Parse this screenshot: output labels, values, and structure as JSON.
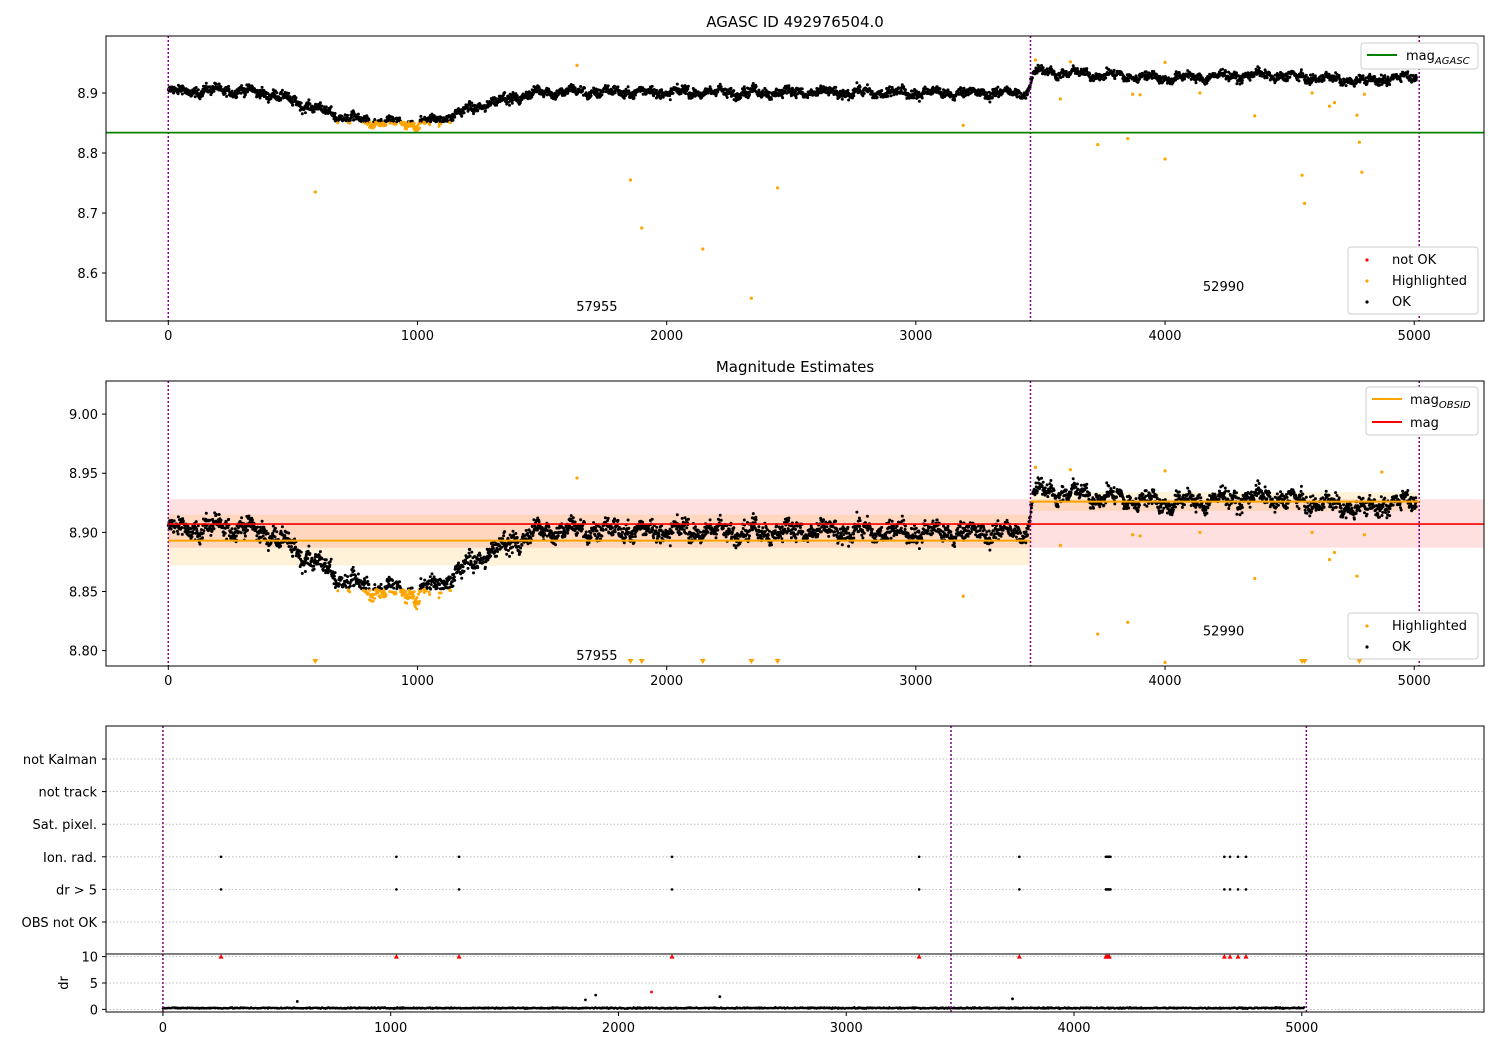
{
  "chart_data": [
    {
      "type": "scatter",
      "title": "AGASC ID 492976504.0",
      "xlabel": "",
      "ylabel": "",
      "xlim": [
        -250,
        5280
      ],
      "ylim": [
        8.52,
        8.995
      ],
      "xticks": [
        0,
        1000,
        2000,
        3000,
        4000,
        5000
      ],
      "yticks": [
        8.6,
        8.7,
        8.8,
        8.9
      ],
      "observation_boundaries": [
        0,
        3460,
        5020
      ],
      "observation_labels": [
        {
          "text": "57955",
          "x": 1720,
          "y": 8.537
        },
        {
          "text": "52990",
          "x": 4235,
          "y": 8.57
        }
      ],
      "reference_lines": [
        {
          "name": "mag",
          "subscript": "AGASC",
          "y": 8.834,
          "x0": -250,
          "x1": 5280,
          "color": "#008000"
        }
      ],
      "legend_upper": {
        "placement": "upper-right"
      },
      "legend_lower": {
        "placement": "lower-right",
        "entries": [
          {
            "name": "not OK",
            "color": "#ff0000"
          },
          {
            "name": "Highlighted",
            "color": "#ffa500"
          },
          {
            "name": "OK",
            "color": "#000000"
          }
        ]
      },
      "ok_profile": [
        {
          "x": 0,
          "y": 8.902
        },
        {
          "x": 250,
          "y": 8.905
        },
        {
          "x": 400,
          "y": 8.9
        },
        {
          "x": 550,
          "y": 8.88
        },
        {
          "x": 700,
          "y": 8.86
        },
        {
          "x": 800,
          "y": 8.852
        },
        {
          "x": 1000,
          "y": 8.848
        },
        {
          "x": 1100,
          "y": 8.858
        },
        {
          "x": 1300,
          "y": 8.885
        },
        {
          "x": 1500,
          "y": 8.902
        },
        {
          "x": 3450,
          "y": 8.9
        },
        {
          "x": 3470,
          "y": 8.936
        },
        {
          "x": 4000,
          "y": 8.925
        },
        {
          "x": 4400,
          "y": 8.93
        },
        {
          "x": 4800,
          "y": 8.92
        },
        {
          "x": 5000,
          "y": 8.928
        }
      ],
      "highlighted_points": [
        {
          "x": 590,
          "y": 8.735
        },
        {
          "x": 1640,
          "y": 8.946
        },
        {
          "x": 1855,
          "y": 8.755
        },
        {
          "x": 1900,
          "y": 8.675
        },
        {
          "x": 2145,
          "y": 8.64
        },
        {
          "x": 2340,
          "y": 8.558
        },
        {
          "x": 2445,
          "y": 8.742
        },
        {
          "x": 3190,
          "y": 8.846
        },
        {
          "x": 3580,
          "y": 8.89
        },
        {
          "x": 3730,
          "y": 8.814
        },
        {
          "x": 3850,
          "y": 8.824
        },
        {
          "x": 3870,
          "y": 8.898
        },
        {
          "x": 3900,
          "y": 8.897
        },
        {
          "x": 4000,
          "y": 8.79
        },
        {
          "x": 4000,
          "y": 8.951
        },
        {
          "x": 4140,
          "y": 8.9
        },
        {
          "x": 4360,
          "y": 8.862
        },
        {
          "x": 4550,
          "y": 8.763
        },
        {
          "x": 4560,
          "y": 8.716
        },
        {
          "x": 4590,
          "y": 8.9
        },
        {
          "x": 4660,
          "y": 8.878
        },
        {
          "x": 4680,
          "y": 8.884
        },
        {
          "x": 4770,
          "y": 8.863
        },
        {
          "x": 4780,
          "y": 8.818
        },
        {
          "x": 4790,
          "y": 8.768
        },
        {
          "x": 4800,
          "y": 8.898
        },
        {
          "x": 4870,
          "y": 8.949
        },
        {
          "x": 3480,
          "y": 8.955
        },
        {
          "x": 3620,
          "y": 8.952
        }
      ]
    },
    {
      "type": "scatter",
      "title": "Magnitude Estimates",
      "xlabel": "",
      "ylabel": "",
      "xlim": [
        -250,
        5280
      ],
      "ylim": [
        8.787,
        9.028
      ],
      "xticks": [
        0,
        1000,
        2000,
        3000,
        4000,
        5000
      ],
      "yticks": [
        8.8,
        8.85,
        8.9,
        8.95,
        9.0
      ],
      "ytick_labels": [
        "8.80",
        "8.85",
        "8.90",
        "8.95",
        "9.00"
      ],
      "observation_boundaries": [
        0,
        3460,
        5020
      ],
      "observation_labels": [
        {
          "text": "57955",
          "x": 1720,
          "y": 8.792
        },
        {
          "text": "52990",
          "x": 4235,
          "y": 8.813
        }
      ],
      "mag_line": {
        "name": "mag",
        "y": 8.907,
        "band": [
          8.887,
          8.928
        ],
        "x0": 0,
        "x1": 5280,
        "color": "#ff0000"
      },
      "obsid_lines": [
        {
          "name": "mag",
          "subscript": "OBSID",
          "y": 8.893,
          "band": [
            8.872,
            8.915
          ],
          "x0": 0,
          "x1": 3460,
          "color": "#ffa500"
        },
        {
          "name": "mag",
          "subscript": "OBSID",
          "y": 8.926,
          "band": [
            8.918,
            8.934
          ],
          "x0": 3460,
          "x1": 5020,
          "color": "#ffa500"
        }
      ],
      "legend_upper": {
        "placement": "upper-right"
      },
      "legend_lower": {
        "placement": "lower-right",
        "entries": [
          {
            "name": "Highlighted",
            "color": "#ffa500"
          },
          {
            "name": "OK",
            "color": "#000000"
          }
        ]
      },
      "below_range_markers_x": [
        590,
        1855,
        1900,
        2145,
        2340,
        2445,
        4550,
        4560,
        4780
      ],
      "highlighted_points": [
        {
          "x": 1640,
          "y": 8.946
        },
        {
          "x": 3190,
          "y": 8.846
        },
        {
          "x": 3580,
          "y": 8.889
        },
        {
          "x": 3730,
          "y": 8.814
        },
        {
          "x": 3850,
          "y": 8.824
        },
        {
          "x": 3870,
          "y": 8.898
        },
        {
          "x": 3900,
          "y": 8.897
        },
        {
          "x": 4000,
          "y": 8.79
        },
        {
          "x": 4000,
          "y": 8.952
        },
        {
          "x": 4140,
          "y": 8.9
        },
        {
          "x": 4360,
          "y": 8.861
        },
        {
          "x": 4590,
          "y": 8.9
        },
        {
          "x": 4660,
          "y": 8.877
        },
        {
          "x": 4680,
          "y": 8.883
        },
        {
          "x": 4770,
          "y": 8.863
        },
        {
          "x": 4780,
          "y": 8.818
        },
        {
          "x": 4800,
          "y": 8.898
        },
        {
          "x": 4870,
          "y": 8.951
        },
        {
          "x": 3480,
          "y": 8.955
        },
        {
          "x": 3620,
          "y": 8.953
        }
      ]
    },
    {
      "type": "scatter",
      "title": "",
      "xlabel": "",
      "ylabel": "",
      "xlim": [
        -250,
        5800
      ],
      "flag_rows": [
        "not Kalman",
        "not track",
        "Sat. pixel.",
        "Ion. rad.",
        "dr > 5",
        "OBS not OK"
      ],
      "observation_boundaries": [
        0,
        3460,
        5020
      ],
      "flag_events": [
        {
          "row": "Ion. rad.",
          "x": [
            255,
            1025,
            1300,
            2235,
            3320,
            3760,
            4140,
            4145,
            4150,
            4155,
            4160,
            4660,
            4685,
            4720,
            4755
          ]
        },
        {
          "row": "dr > 5",
          "x": [
            255,
            1025,
            1300,
            2235,
            3320,
            3760,
            4140,
            4145,
            4150,
            4155,
            4160,
            4660,
            4685,
            4720,
            4755
          ]
        }
      ]
    },
    {
      "type": "scatter",
      "title": "",
      "xlabel": "",
      "ylabel": "dr",
      "xlim": [
        -250,
        5800
      ],
      "ylim": [
        -0.5,
        10.5
      ],
      "yticks": [
        0,
        5,
        10
      ],
      "observation_boundaries": [
        0,
        3460,
        5020
      ],
      "clipped_markers_x": [
        255,
        1025,
        1300,
        2235,
        3320,
        3760,
        4140,
        4145,
        4150,
        4155,
        4660,
        4685,
        4720,
        4755
      ],
      "outlier_points": [
        {
          "x": 590,
          "y": 1.5
        },
        {
          "x": 1855,
          "y": 1.8
        },
        {
          "x": 1900,
          "y": 2.7
        },
        {
          "x": 2445,
          "y": 2.4
        },
        {
          "x": 3730,
          "y": 2.0
        }
      ],
      "outlier_points_red": [
        {
          "x": 2145,
          "y": 3.3
        }
      ]
    }
  ]
}
